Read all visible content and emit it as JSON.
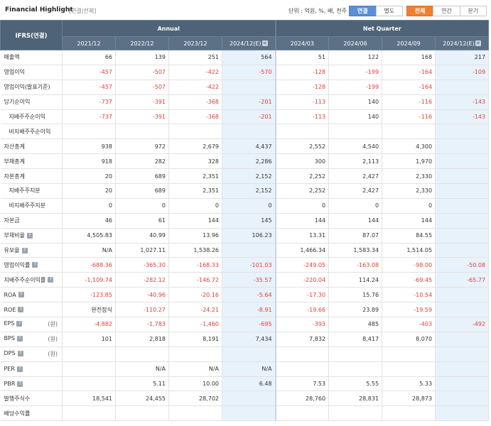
{
  "header": {
    "title": "Financial Highlight",
    "subtitle": "[연결|전체]",
    "unit": "단위 : 억원, %, 배, 천주",
    "basis_buttons": [
      "연결",
      "별도"
    ],
    "period_buttons": [
      "전체",
      "연간",
      "분기"
    ],
    "active_basis": "연결",
    "active_period": "전체"
  },
  "colors": {
    "header_bg": "#4f6378",
    "estimate_bg": "#e8f2fb",
    "negative": "#e0403a",
    "blue_btn": "#5a8fd8",
    "orange_btn": "#f08030"
  },
  "table": {
    "corner": "IFRS(연결)",
    "groups": [
      "Annual",
      "Net Quarter"
    ],
    "periods": [
      "2021/12",
      "2022/12",
      "2023/12",
      "2024/12(E)",
      "2024/03",
      "2024/06",
      "2024/09",
      "2024/12(E)"
    ],
    "rows": [
      {
        "label": "매출액",
        "values": [
          "66",
          "139",
          "251",
          "564",
          "51",
          "122",
          "168",
          "217"
        ]
      },
      {
        "label": "영업이익",
        "values": [
          "-457",
          "-507",
          "-422",
          "-570",
          "-128",
          "-199",
          "-164",
          "-109"
        ]
      },
      {
        "label": "영업이익(발표기준)",
        "values": [
          "-457",
          "-507",
          "-422",
          "",
          "-128",
          "-199",
          "-164",
          ""
        ]
      },
      {
        "label": "당기순이익",
        "values": [
          "-737",
          "-391",
          "-368",
          "-201",
          "-113",
          "140",
          "-116",
          "-143"
        ]
      },
      {
        "label": "지배주주순이익",
        "values": [
          "-737",
          "-391",
          "-368",
          "-201",
          "-113",
          "140",
          "-116",
          "-143"
        ]
      },
      {
        "label": "비지배주주순이익",
        "values": [
          "",
          "",
          "",
          "",
          "",
          "",
          "",
          ""
        ]
      },
      {
        "label": "자산총계",
        "values": [
          "938",
          "972",
          "2,679",
          "4,437",
          "2,552",
          "4,540",
          "4,300",
          ""
        ]
      },
      {
        "label": "부채총계",
        "values": [
          "918",
          "282",
          "328",
          "2,286",
          "300",
          "2,113",
          "1,970",
          ""
        ]
      },
      {
        "label": "자본총계",
        "values": [
          "20",
          "689",
          "2,351",
          "2,152",
          "2,252",
          "2,427",
          "2,330",
          ""
        ]
      },
      {
        "label": "지배주주지분",
        "values": [
          "20",
          "689",
          "2,351",
          "2,152",
          "2,252",
          "2,427",
          "2,330",
          ""
        ]
      },
      {
        "label": "비지배주주지분",
        "values": [
          "0",
          "0",
          "0",
          "0",
          "0",
          "0",
          "0",
          ""
        ]
      },
      {
        "label": "자본금",
        "values": [
          "46",
          "61",
          "144",
          "145",
          "144",
          "144",
          "144",
          ""
        ]
      },
      {
        "label": "부채비율",
        "values": [
          "4,505.83",
          "40.99",
          "13.96",
          "106.23",
          "13.31",
          "87.07",
          "84.55",
          ""
        ]
      },
      {
        "label": "유보율",
        "values": [
          "N/A",
          "1,027.11",
          "1,538.26",
          "",
          "1,466.34",
          "1,583.34",
          "1,514.05",
          ""
        ]
      },
      {
        "label": "영업이익률",
        "values": [
          "-688.36",
          "-365.30",
          "-168.33",
          "-101.03",
          "-249.05",
          "-163.08",
          "-98.00",
          "-50.08"
        ]
      },
      {
        "label": "지배주주순이익률",
        "values": [
          "-1,109.74",
          "-282.12",
          "-146.72",
          "-35.57",
          "-220.04",
          "114.24",
          "-69.45",
          "-65.77"
        ]
      },
      {
        "label": "ROA",
        "values": [
          "-123.85",
          "-40.96",
          "-20.16",
          "-5.64",
          "-17.30",
          "15.76",
          "-10.54",
          ""
        ]
      },
      {
        "label": "ROE",
        "values": [
          "완전잠식",
          "-110.27",
          "-24.21",
          "-8.91",
          "-19.66",
          "23.89",
          "-19.59",
          ""
        ]
      },
      {
        "label": "EPS",
        "unit": "(원)",
        "values": [
          "-4,882",
          "-1,783",
          "-1,460",
          "-695",
          "-393",
          "485",
          "-403",
          "-492"
        ]
      },
      {
        "label": "BPS",
        "unit": "(원)",
        "values": [
          "101",
          "2,818",
          "8,191",
          "7,434",
          "7,832",
          "8,417",
          "8,070",
          ""
        ]
      },
      {
        "label": "DPS",
        "unit": "(원)",
        "values": [
          "",
          "",
          "",
          "",
          "",
          "",
          "",
          ""
        ]
      },
      {
        "label": "PER",
        "values": [
          "",
          "N/A",
          "N/A",
          "N/A",
          "",
          "",
          "",
          ""
        ]
      },
      {
        "label": "PBR",
        "values": [
          "",
          "5.11",
          "10.00",
          "6.48",
          "7.53",
          "5.55",
          "5.33",
          ""
        ]
      },
      {
        "label": "발행주식수",
        "values": [
          "18,541",
          "24,455",
          "28,702",
          "",
          "28,760",
          "28,831",
          "28,873",
          ""
        ]
      },
      {
        "label": "배당수익률",
        "values": [
          "",
          "",
          "",
          "",
          "",
          "",
          "",
          ""
        ]
      }
    ]
  }
}
